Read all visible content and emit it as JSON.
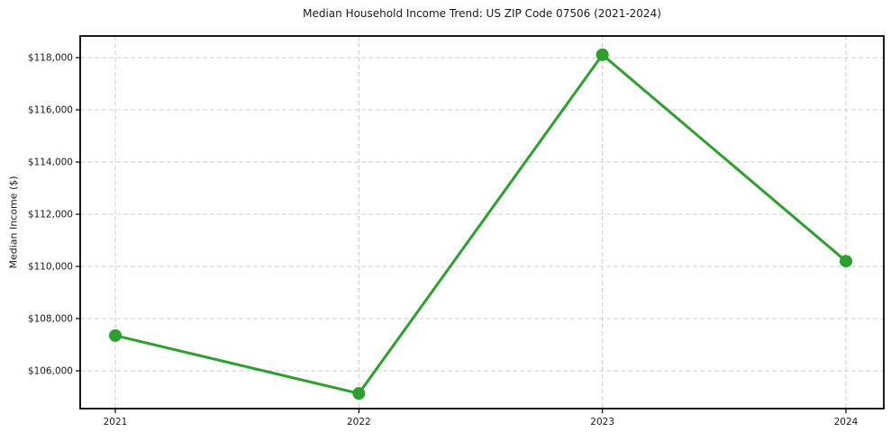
{
  "chart_data": {
    "type": "line",
    "title": "Median Household Income Trend: US ZIP Code 07506 (2021-2024)",
    "xlabel": "",
    "ylabel": "Median Income ($)",
    "x": [
      "2021",
      "2022",
      "2023",
      "2024"
    ],
    "series": [
      {
        "name": "Median household income",
        "values": [
          107350,
          105130,
          118110,
          110200
        ]
      }
    ],
    "yticks": [
      106000,
      108000,
      110000,
      112000,
      114000,
      116000,
      118000
    ],
    "ytick_labels": [
      "$106,000",
      "$108,000",
      "$110,000",
      "$112,000",
      "$114,000",
      "$116,000",
      "$118,000"
    ],
    "ylim": [
      104550,
      118830
    ],
    "grid": true,
    "grid_style": "dashed",
    "legend": "none",
    "colors": {
      "line": "#2ca02c",
      "marker": "#2ca02c",
      "grid": "#cccccc",
      "axis": "#000000",
      "text": "#1a1a1a",
      "background": "#ffffff"
    }
  }
}
